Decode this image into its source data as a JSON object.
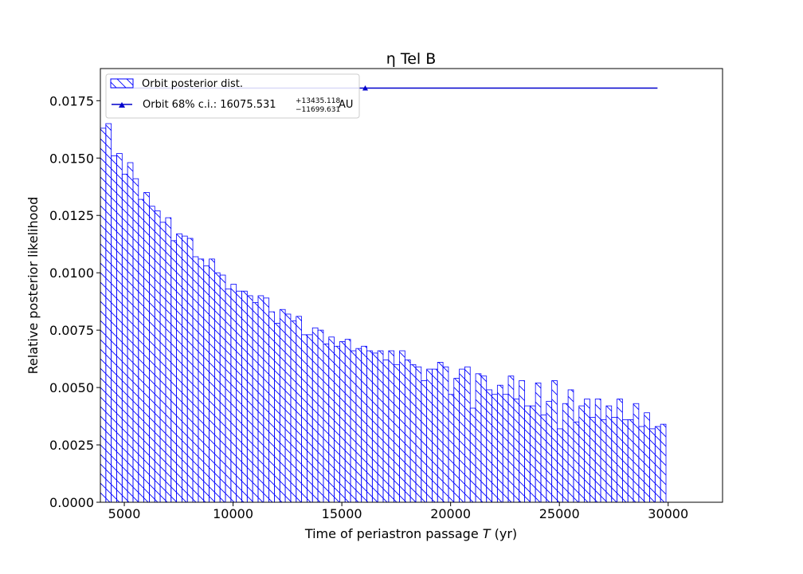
{
  "chart_data": {
    "type": "bar",
    "title": "η Tel B",
    "xlabel_prefix": "Time of periastron passage ",
    "xlabel_var": "T",
    "xlabel_suffix": " (yr)",
    "ylabel": "Relative posterior likelihood",
    "xlim": [
      3900,
      32500
    ],
    "ylim": [
      0,
      0.0189
    ],
    "xticks": [
      5000,
      10000,
      15000,
      20000,
      25000,
      30000
    ],
    "yticks": [
      "0.0000",
      "0.0025",
      "0.0050",
      "0.0075",
      "0.0100",
      "0.0125",
      "0.0150",
      "0.0175"
    ],
    "ytick_values": [
      0,
      0.0025,
      0.005,
      0.0075,
      0.01,
      0.0125,
      0.015,
      0.0175
    ],
    "grid": false,
    "bin_start": 3900,
    "bin_width": 250,
    "bar_color": "#0000ff",
    "values": [
      0.0163,
      0.0165,
      0.0151,
      0.0152,
      0.0143,
      0.0148,
      0.0141,
      0.0132,
      0.0135,
      0.0129,
      0.0127,
      0.0122,
      0.0124,
      0.0114,
      0.0117,
      0.0116,
      0.0115,
      0.0107,
      0.0106,
      0.0103,
      0.0106,
      0.01,
      0.0099,
      0.0093,
      0.0095,
      0.0092,
      0.0092,
      0.009,
      0.0087,
      0.009,
      0.0089,
      0.0083,
      0.0078,
      0.0084,
      0.0082,
      0.0079,
      0.0081,
      0.0073,
      0.0073,
      0.0076,
      0.0075,
      0.0069,
      0.0072,
      0.0068,
      0.007,
      0.0071,
      0.0066,
      0.0067,
      0.0068,
      0.0066,
      0.0065,
      0.0066,
      0.0062,
      0.0066,
      0.006,
      0.0066,
      0.0062,
      0.006,
      0.0059,
      0.0053,
      0.0058,
      0.0058,
      0.0061,
      0.0059,
      0.0047,
      0.0054,
      0.0058,
      0.0059,
      0.0041,
      0.0056,
      0.0055,
      0.0049,
      0.0047,
      0.0051,
      0.0047,
      0.0055,
      0.0045,
      0.0053,
      0.0042,
      0.0042,
      0.0052,
      0.0038,
      0.0044,
      0.0053,
      0.0032,
      0.0043,
      0.0049,
      0.0035,
      0.0042,
      0.0045,
      0.0037,
      0.0045,
      0.0036,
      0.0042,
      0.0037,
      0.0045,
      0.0036,
      0.0036,
      0.0043,
      0.0033,
      0.0039,
      0.0032,
      0.0033,
      0.0034
    ],
    "errorbar": {
      "center": 16075.531,
      "lower": 4375.9,
      "upper": 29510.649,
      "y": 0.01805,
      "color": "#0000cc"
    },
    "legend": {
      "position": "top-left",
      "entries": [
        {
          "label": "Orbit posterior dist."
        },
        {
          "label_prefix": "Orbit 68% c.i.: 16075.531",
          "sup": "+13435.118",
          "sub": "−11699.631",
          "unit": "AU"
        }
      ]
    }
  }
}
